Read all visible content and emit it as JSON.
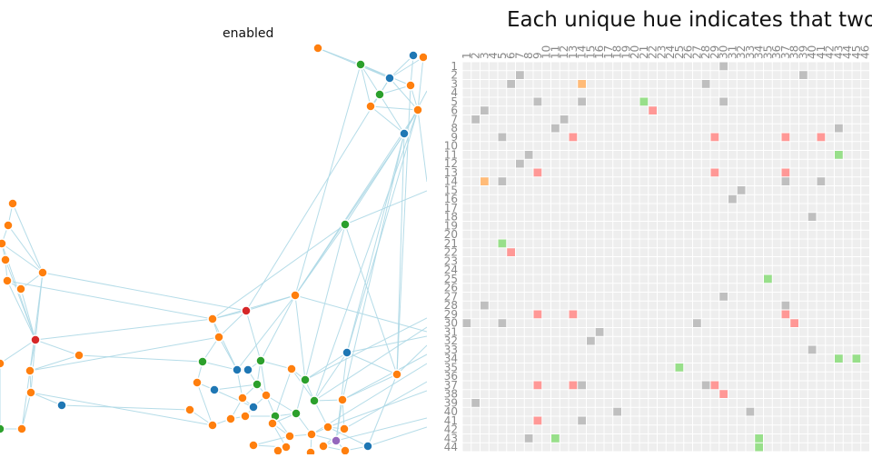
{
  "toggle": {
    "label": "enabled"
  },
  "colors": {
    "link": "#add8e6",
    "node_stroke": "#ffffff",
    "matrix_bg": "#eeeeee",
    "axis_label": "#888888",
    "group_palette": [
      "#1f77b4",
      "#ff7f0e",
      "#2ca02c",
      "#d62728",
      "#9467bd"
    ],
    "cell_palette": {
      "gray": "#bfbfbf",
      "orange": "#ffbb78",
      "green": "#98df8a",
      "red": "#ff9896"
    }
  },
  "chart_data": [
    {
      "type": "network",
      "series": [
        {
          "group": "blue",
          "color": "#1f77b4"
        },
        {
          "group": "orange",
          "color": "#ff7f0e"
        },
        {
          "group": "green",
          "color": "#2ca02c"
        },
        {
          "group": "red",
          "color": "#d62728"
        },
        {
          "group": "purple",
          "color": "#9467bd"
        }
      ]
    },
    {
      "type": "heatmap",
      "title": "Each unique hue indicates that two",
      "rows": [
        "1",
        "2",
        "3",
        "4",
        "5",
        "6",
        "7",
        "8",
        "9",
        "10",
        "11",
        "12",
        "13",
        "14",
        "15",
        "16",
        "17",
        "18",
        "19",
        "20",
        "21",
        "22",
        "23",
        "24",
        "25",
        "26",
        "27",
        "28",
        "29",
        "30",
        "31",
        "32",
        "33",
        "34",
        "35",
        "36",
        "37",
        "38",
        "39",
        "40",
        "41",
        "42",
        "43",
        "44"
      ],
      "columns": [
        "1",
        "2",
        "3",
        "4",
        "5",
        "6",
        "7",
        "8",
        "9",
        "10",
        "11",
        "12",
        "13",
        "14",
        "15",
        "16",
        "17",
        "18",
        "19",
        "20",
        "21",
        "22",
        "23",
        "24",
        "25",
        "26",
        "27",
        "28",
        "29",
        "30",
        "31",
        "32",
        "33",
        "34",
        "35",
        "36",
        "37",
        "38",
        "39",
        "40",
        "41",
        "42",
        "43",
        "44",
        "45",
        "46"
      ],
      "cells": [
        [
          1,
          30,
          "gray"
        ],
        [
          2,
          7,
          "gray"
        ],
        [
          2,
          39,
          "gray"
        ],
        [
          3,
          6,
          "gray"
        ],
        [
          3,
          14,
          "orange"
        ],
        [
          3,
          28,
          "gray"
        ],
        [
          5,
          9,
          "gray"
        ],
        [
          5,
          14,
          "gray"
        ],
        [
          5,
          21,
          "green"
        ],
        [
          5,
          30,
          "gray"
        ],
        [
          6,
          3,
          "gray"
        ],
        [
          6,
          22,
          "red"
        ],
        [
          7,
          2,
          "gray"
        ],
        [
          7,
          12,
          "gray"
        ],
        [
          8,
          11,
          "gray"
        ],
        [
          8,
          43,
          "gray"
        ],
        [
          9,
          5,
          "gray"
        ],
        [
          9,
          13,
          "red"
        ],
        [
          9,
          29,
          "red"
        ],
        [
          9,
          37,
          "red"
        ],
        [
          9,
          41,
          "red"
        ],
        [
          11,
          43,
          "green"
        ],
        [
          11,
          8,
          "gray"
        ],
        [
          12,
          7,
          "gray"
        ],
        [
          13,
          9,
          "red"
        ],
        [
          13,
          29,
          "red"
        ],
        [
          13,
          37,
          "red"
        ],
        [
          14,
          3,
          "orange"
        ],
        [
          14,
          5,
          "gray"
        ],
        [
          14,
          37,
          "gray"
        ],
        [
          14,
          41,
          "gray"
        ],
        [
          15,
          32,
          "gray"
        ],
        [
          16,
          31,
          "gray"
        ],
        [
          18,
          40,
          "gray"
        ],
        [
          21,
          5,
          "green"
        ],
        [
          22,
          6,
          "red"
        ],
        [
          25,
          35,
          "green"
        ],
        [
          27,
          30,
          "gray"
        ],
        [
          28,
          3,
          "gray"
        ],
        [
          28,
          37,
          "gray"
        ],
        [
          29,
          9,
          "red"
        ],
        [
          29,
          13,
          "red"
        ],
        [
          29,
          37,
          "red"
        ],
        [
          30,
          1,
          "gray"
        ],
        [
          30,
          5,
          "gray"
        ],
        [
          30,
          27,
          "gray"
        ],
        [
          30,
          38,
          "red"
        ],
        [
          31,
          16,
          "gray"
        ],
        [
          32,
          15,
          "gray"
        ],
        [
          33,
          40,
          "gray"
        ],
        [
          34,
          43,
          "green"
        ],
        [
          34,
          45,
          "green"
        ],
        [
          35,
          25,
          "green"
        ],
        [
          37,
          9,
          "red"
        ],
        [
          37,
          13,
          "red"
        ],
        [
          37,
          14,
          "gray"
        ],
        [
          37,
          28,
          "gray"
        ],
        [
          37,
          29,
          "red"
        ],
        [
          38,
          30,
          "red"
        ],
        [
          39,
          2,
          "gray"
        ],
        [
          40,
          18,
          "gray"
        ],
        [
          40,
          33,
          "gray"
        ],
        [
          41,
          9,
          "red"
        ],
        [
          41,
          14,
          "gray"
        ],
        [
          43,
          8,
          "gray"
        ],
        [
          43,
          11,
          "green"
        ],
        [
          43,
          34,
          "green"
        ],
        [
          44,
          34,
          "green"
        ]
      ]
    }
  ]
}
